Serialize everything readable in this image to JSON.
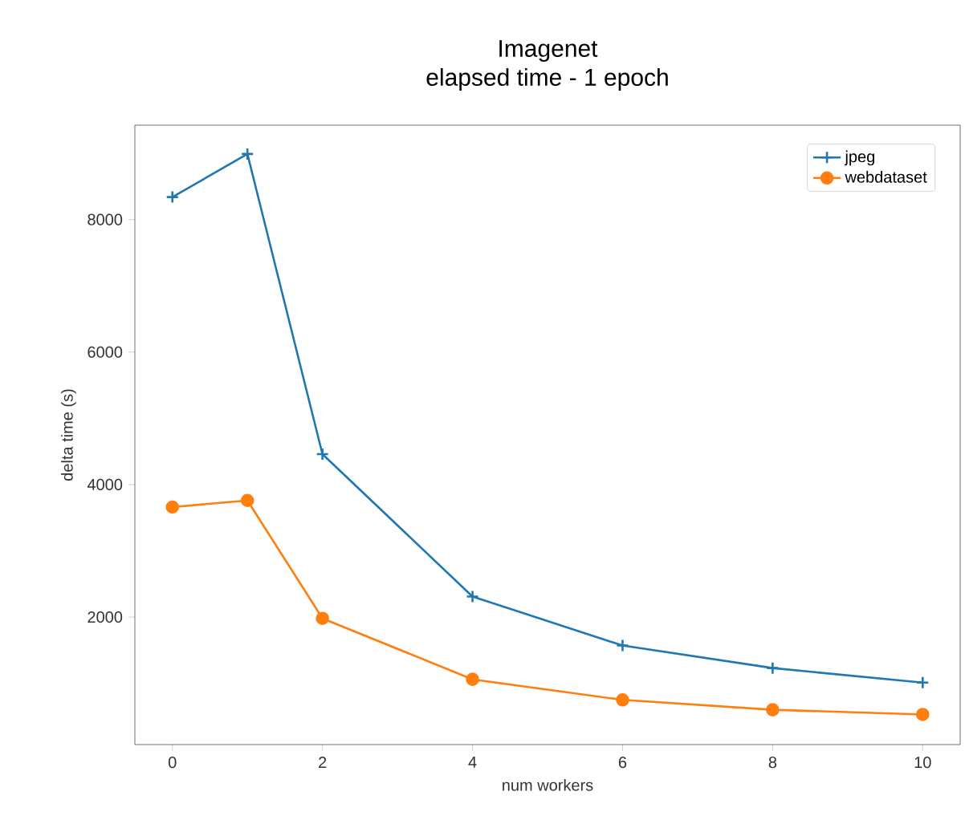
{
  "chart_data": {
    "type": "line",
    "title": "Imagenet\nelapsed time - 1 epoch",
    "xlabel": "num workers",
    "ylabel": "delta time (s)",
    "x": [
      0,
      1,
      2,
      4,
      6,
      8,
      10
    ],
    "series": [
      {
        "name": "jpeg",
        "color": "#1f77b4",
        "marker": "cross",
        "values": [
          8340,
          8990,
          4460,
          2310,
          1570,
          1230,
          1010
        ]
      },
      {
        "name": "webdataset",
        "color": "#ff7f0e",
        "marker": "circle",
        "values": [
          3660,
          3760,
          1980,
          1060,
          750,
          600,
          530
        ]
      }
    ],
    "xlim": [
      -0.5,
      10.5
    ],
    "ylim": [
      75,
      9425
    ],
    "xticks": [
      0,
      2,
      4,
      6,
      8,
      10
    ],
    "yticks": [
      2000,
      4000,
      6000,
      8000
    ],
    "legend": "top right",
    "grid": false
  }
}
